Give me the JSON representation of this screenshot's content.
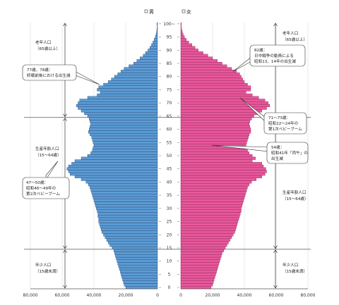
{
  "chart_data": {
    "type": "bar",
    "orientation": "population-pyramid",
    "colors": {
      "male": "#5b9bd5",
      "female": "#e8579b",
      "edge": "#1f3a5f",
      "edge_female": "#7a1e48"
    },
    "legend": [
      {
        "key": "male",
        "label": "男"
      },
      {
        "key": "female",
        "label": "女"
      }
    ],
    "legend_placement": "top-center",
    "age_ticks": [
      "0",
      "5",
      "10",
      "15",
      "20",
      "25",
      "30",
      "35",
      "40",
      "45",
      "50",
      "55",
      "60",
      "65",
      "70",
      "75",
      "80",
      "85",
      "90",
      "95",
      "100~"
    ],
    "x_ticks_left": [
      "80,000",
      "60,000",
      "40,000",
      "20,000",
      "0"
    ],
    "x_ticks_right": [
      "0",
      "20,000",
      "40,000",
      "60,000",
      "80,000"
    ],
    "xlim": [
      0,
      80000
    ],
    "age_range": [
      0,
      100
    ],
    "divider_ages": [
      14.5,
      64.5
    ],
    "series": [
      {
        "name": "男",
        "values": [
          20000,
          21000,
          21500,
          22000,
          22500,
          23000,
          23500,
          24000,
          24500,
          25000,
          25500,
          26000,
          26500,
          27000,
          27500,
          28500,
          30000,
          31000,
          32000,
          33000,
          34000,
          35000,
          35500,
          36000,
          36500,
          37000,
          37000,
          37500,
          37500,
          38000,
          38500,
          39000,
          39500,
          40000,
          40500,
          41000,
          41500,
          42000,
          42500,
          43500,
          45000,
          48000,
          52000,
          55000,
          56000,
          57000,
          56000,
          54000,
          52000,
          48000,
          44000,
          42000,
          41000,
          40500,
          40000,
          40500,
          41000,
          41500,
          42500,
          43500,
          43000,
          42500,
          42000,
          42500,
          43000,
          44000,
          46000,
          48000,
          50000,
          51000,
          50000,
          49000,
          44000,
          38000,
          36000,
          38000,
          37000,
          34000,
          31000,
          29000,
          27000,
          25000,
          23000,
          21000,
          18000,
          15000,
          13000,
          11000,
          9000,
          7500,
          6000,
          4800,
          3800,
          2900,
          2100,
          1400,
          900,
          500,
          300,
          150,
          300
        ]
      },
      {
        "name": "女",
        "values": [
          19000,
          20000,
          20500,
          21000,
          21500,
          22000,
          22500,
          23000,
          23500,
          24000,
          24500,
          25000,
          25500,
          26000,
          27000,
          28000,
          29000,
          30000,
          31000,
          32000,
          33000,
          34000,
          34500,
          35000,
          35500,
          36000,
          36500,
          37000,
          37500,
          38000,
          38000,
          38500,
          39000,
          39500,
          40000,
          40500,
          41000,
          41500,
          42000,
          43000,
          44500,
          47500,
          51000,
          53000,
          54000,
          53500,
          52000,
          51000,
          45000,
          47000,
          45000,
          43000,
          42000,
          41500,
          41000,
          41500,
          42000,
          42500,
          43000,
          44000,
          44000,
          43500,
          43000,
          43500,
          44500,
          46000,
          48500,
          51000,
          54000,
          56000,
          55000,
          53000,
          49000,
          45000,
          41000,
          44000,
          44000,
          42000,
          40000,
          39000,
          38000,
          37000,
          35000,
          32000,
          29000,
          26000,
          23000,
          20000,
          17000,
          14000,
          11000,
          9000,
          7000,
          5000,
          3500,
          2300,
          1500,
          900,
          500,
          250,
          300
        ]
      }
    ],
    "annotations": [
      {
        "text": [
          "老年人口",
          "（65歳以上）"
        ]
      },
      {
        "text": [
          "生産年齢人口",
          "（15～64歳）"
        ]
      },
      {
        "text": [
          "年少人口",
          "（15歳未満）"
        ]
      },
      {
        "text": [
          "老年人口",
          "（65歳以上）"
        ]
      },
      {
        "text": [
          "生産年齢人口",
          "（15～64歳）"
        ]
      },
      {
        "text": [
          "年少人口",
          "（15歳未満）"
        ]
      },
      {
        "text": [
          "77歳、78歳：",
          "終戦前後における出生減"
        ]
      },
      {
        "text": [
          "47～50歳：",
          "昭和46～49年の",
          "第2次ベビーブーム"
        ]
      },
      {
        "text": [
          "82歳：",
          "日中戦争の動員による",
          "昭和13、14年の出生減"
        ]
      },
      {
        "text": [
          "71～73歳：",
          "昭和22～24年の",
          "第1次ベビーブーム"
        ]
      },
      {
        "text": [
          "54歳：",
          "昭和41年「丙午」の",
          "出生減"
        ]
      }
    ]
  }
}
